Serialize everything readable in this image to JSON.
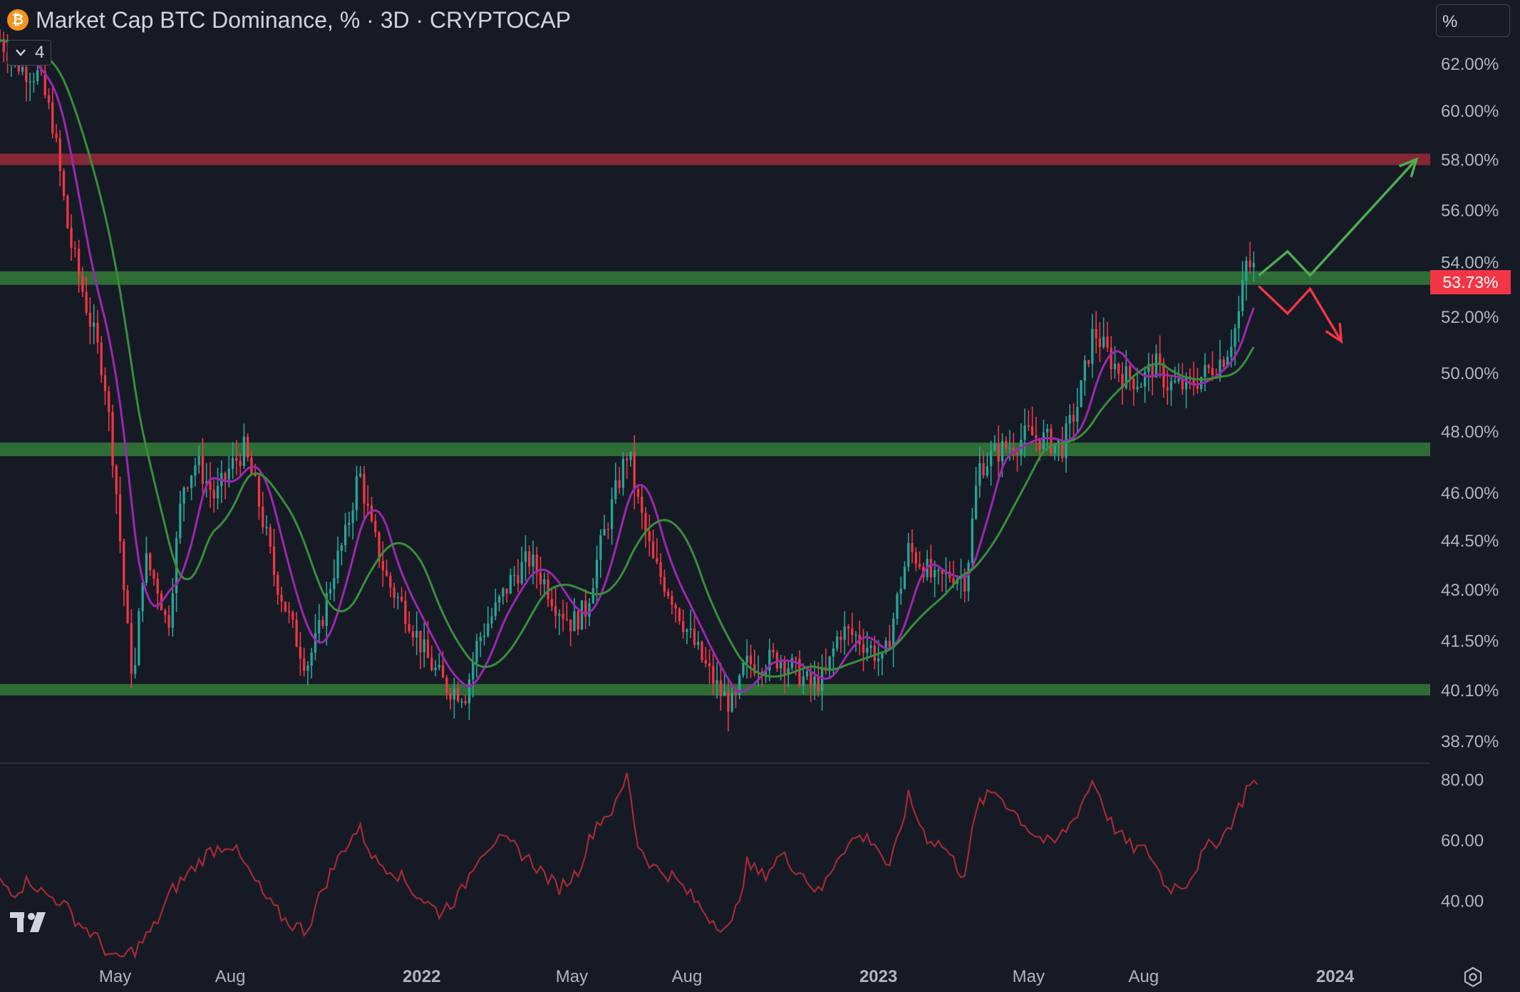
{
  "header": {
    "coin_icon": "bitcoin-icon",
    "coin_glyph": "₿",
    "title": "Market Cap BTC Dominance, % · 3D · CRYPTOCAP",
    "indicator_count": "4",
    "scale_label": "%"
  },
  "current_price": "53.73%",
  "colors": {
    "background": "#161a25",
    "up": "#26a69a",
    "down": "#f23645",
    "ma_fast": "#9c27b0",
    "ma_slow": "#388e3c",
    "resistance": "#f23645",
    "support": "#388e3c",
    "rsi": "#a52a35"
  },
  "chart_data": [
    {
      "type": "candlestick",
      "title": "Market Cap BTC Dominance, % · 3D · CRYPTOCAP",
      "x_tick_labels": [
        "May",
        "Aug",
        "2022",
        "May",
        "Aug",
        "2023",
        "May",
        "Aug",
        "2024"
      ],
      "x_tick_dates": [
        "2021-05-01",
        "2021-08-01",
        "2022-01-01",
        "2022-05-01",
        "2022-08-01",
        "2023-01-01",
        "2023-05-01",
        "2023-08-01",
        "2024-01-01"
      ],
      "y_tick_labels": [
        "62.00%",
        "60.00%",
        "58.00%",
        "56.00%",
        "54.00%",
        "52.00%",
        "50.00%",
        "48.00%",
        "46.00%",
        "44.50%",
        "43.00%",
        "41.50%",
        "40.10%",
        "38.70%"
      ],
      "y_scale": "log",
      "y_range": [
        38.1,
        64.8
      ],
      "x_range": [
        "2021-01-29",
        "2024-03-17"
      ],
      "horizontal_levels": [
        {
          "value": 58.0,
          "kind": "resistance"
        },
        {
          "value": 53.4,
          "kind": "support"
        },
        {
          "value": 47.4,
          "kind": "support"
        },
        {
          "value": 40.1,
          "kind": "support"
        }
      ],
      "price_path": [
        [
          "2021-01-29",
          63.0
        ],
        [
          "2021-02-15",
          61.8
        ],
        [
          "2021-03-01",
          61.5
        ],
        [
          "2021-03-12",
          59.5
        ],
        [
          "2021-03-25",
          55.0
        ],
        [
          "2021-04-10",
          52.0
        ],
        [
          "2021-04-22",
          50.0
        ],
        [
          "2021-05-01",
          46.5
        ],
        [
          "2021-05-10",
          42.0
        ],
        [
          "2021-05-16",
          40.2
        ],
        [
          "2021-05-24",
          44.0
        ],
        [
          "2021-06-05",
          43.0
        ],
        [
          "2021-06-12",
          41.8
        ],
        [
          "2021-06-24",
          46.2
        ],
        [
          "2021-07-05",
          47.0
        ],
        [
          "2021-07-20",
          45.8
        ],
        [
          "2021-08-01",
          46.8
        ],
        [
          "2021-08-12",
          47.4
        ],
        [
          "2021-08-22",
          46.0
        ],
        [
          "2021-09-05",
          43.5
        ],
        [
          "2021-09-20",
          41.8
        ],
        [
          "2021-10-01",
          40.8
        ],
        [
          "2021-10-10",
          41.6
        ],
        [
          "2021-10-22",
          43.5
        ],
        [
          "2021-11-01",
          44.6
        ],
        [
          "2021-11-12",
          46.7
        ],
        [
          "2021-11-22",
          44.8
        ],
        [
          "2021-12-05",
          43.2
        ],
        [
          "2021-12-20",
          42.3
        ],
        [
          "2022-01-05",
          41.0
        ],
        [
          "2022-01-20",
          40.2
        ],
        [
          "2022-02-05",
          40.0
        ],
        [
          "2022-02-15",
          41.5
        ],
        [
          "2022-03-01",
          42.4
        ],
        [
          "2022-03-15",
          43.4
        ],
        [
          "2022-03-28",
          43.9
        ],
        [
          "2022-04-08",
          43.3
        ],
        [
          "2022-04-18",
          42.6
        ],
        [
          "2022-05-01",
          42.0
        ],
        [
          "2022-05-12",
          42.4
        ],
        [
          "2022-05-22",
          44.0
        ],
        [
          "2022-06-05",
          46.0
        ],
        [
          "2022-06-15",
          47.4
        ],
        [
          "2022-06-22",
          45.8
        ],
        [
          "2022-07-05",
          43.8
        ],
        [
          "2022-07-20",
          42.8
        ],
        [
          "2022-08-01",
          41.8
        ],
        [
          "2022-08-15",
          40.8
        ],
        [
          "2022-08-28",
          40.0
        ],
        [
          "2022-09-08",
          39.6
        ],
        [
          "2022-09-16",
          40.8
        ],
        [
          "2022-10-01",
          40.9
        ],
        [
          "2022-10-15",
          41.0
        ],
        [
          "2022-10-28",
          40.6
        ],
        [
          "2022-11-08",
          40.2
        ],
        [
          "2022-11-20",
          40.5
        ],
        [
          "2022-12-01",
          41.8
        ],
        [
          "2022-12-15",
          41.6
        ],
        [
          "2022-12-28",
          41.2
        ],
        [
          "2023-01-05",
          40.8
        ],
        [
          "2023-01-15",
          42.5
        ],
        [
          "2023-01-25",
          44.2
        ],
        [
          "2023-02-05",
          43.8
        ],
        [
          "2023-02-15",
          43.2
        ],
        [
          "2023-03-01",
          43.5
        ],
        [
          "2023-03-12",
          43.3
        ],
        [
          "2023-03-22",
          46.8
        ],
        [
          "2023-04-05",
          47.3
        ],
        [
          "2023-04-20",
          47.6
        ],
        [
          "2023-05-01",
          47.9
        ],
        [
          "2023-05-15",
          47.7
        ],
        [
          "2023-05-28",
          47.5
        ],
        [
          "2023-06-10",
          49.0
        ],
        [
          "2023-06-22",
          51.5
        ],
        [
          "2023-07-05",
          50.5
        ],
        [
          "2023-07-15",
          49.9
        ],
        [
          "2023-07-30",
          49.7
        ],
        [
          "2023-08-10",
          50.3
        ],
        [
          "2023-08-20",
          49.6
        ],
        [
          "2023-09-05",
          49.5
        ],
        [
          "2023-09-20",
          50.0
        ],
        [
          "2023-10-05",
          50.6
        ],
        [
          "2023-10-15",
          51.8
        ],
        [
          "2023-10-22",
          53.9
        ],
        [
          "2023-10-30",
          53.73
        ]
      ],
      "ma_fast_lag_days": 12,
      "ma_slow_lag_days": 28,
      "projections": [
        {
          "direction": "up",
          "points": [
            [
              "2023-11-01",
              53.5
            ],
            [
              "2023-11-24",
              54.4
            ],
            [
              "2023-12-12",
              53.5
            ],
            [
              "2024-03-06",
              58.0
            ]
          ]
        },
        {
          "direction": "down",
          "points": [
            [
              "2023-11-01",
              53.1
            ],
            [
              "2023-11-24",
              52.1
            ],
            [
              "2023-12-12",
              53.0
            ],
            [
              "2024-01-06",
              51.1
            ]
          ]
        }
      ],
      "current_value": 53.73
    },
    {
      "type": "line",
      "panel": "oscillator",
      "y_tick_labels": [
        "80.00",
        "60.00",
        "40.00"
      ],
      "y_range": [
        22,
        85
      ],
      "values": [
        [
          "2021-01-29",
          46
        ],
        [
          "2021-02-10",
          43
        ],
        [
          "2021-02-22",
          47
        ],
        [
          "2021-03-05",
          42
        ],
        [
          "2021-03-18",
          40
        ],
        [
          "2021-04-01",
          33
        ],
        [
          "2021-04-15",
          28
        ],
        [
          "2021-05-01",
          20
        ],
        [
          "2021-05-18",
          24
        ],
        [
          "2021-06-01",
          31
        ],
        [
          "2021-06-15",
          43
        ],
        [
          "2021-07-01",
          50
        ],
        [
          "2021-07-15",
          56
        ],
        [
          "2021-08-01",
          59
        ],
        [
          "2021-08-15",
          50
        ],
        [
          "2021-09-01",
          39
        ],
        [
          "2021-09-15",
          33
        ],
        [
          "2021-10-01",
          30
        ],
        [
          "2021-10-15",
          45
        ],
        [
          "2021-11-01",
          58
        ],
        [
          "2021-11-12",
          64
        ],
        [
          "2021-11-25",
          53
        ],
        [
          "2021-12-10",
          50
        ],
        [
          "2021-12-28",
          42
        ],
        [
          "2022-01-15",
          36
        ],
        [
          "2022-02-01",
          42
        ],
        [
          "2022-02-15",
          55
        ],
        [
          "2022-03-01",
          60
        ],
        [
          "2022-03-15",
          58
        ],
        [
          "2022-04-01",
          52
        ],
        [
          "2022-04-20",
          44
        ],
        [
          "2022-05-05",
          49
        ],
        [
          "2022-05-20",
          65
        ],
        [
          "2022-06-05",
          71
        ],
        [
          "2022-06-15",
          82
        ],
        [
          "2022-06-22",
          59
        ],
        [
          "2022-07-05",
          51
        ],
        [
          "2022-07-20",
          48
        ],
        [
          "2022-08-05",
          41
        ],
        [
          "2022-08-20",
          34
        ],
        [
          "2022-09-05",
          30
        ],
        [
          "2022-09-18",
          52
        ],
        [
          "2022-10-01",
          48
        ],
        [
          "2022-10-15",
          55
        ],
        [
          "2022-11-01",
          49
        ],
        [
          "2022-11-15",
          42
        ],
        [
          "2022-12-01",
          56
        ],
        [
          "2022-12-15",
          61
        ],
        [
          "2022-12-28",
          60
        ],
        [
          "2023-01-10",
          50
        ],
        [
          "2023-01-25",
          74
        ],
        [
          "2023-02-08",
          61
        ],
        [
          "2023-02-22",
          58
        ],
        [
          "2023-03-10",
          48
        ],
        [
          "2023-03-22",
          72
        ],
        [
          "2023-04-05",
          76
        ],
        [
          "2023-04-20",
          69
        ],
        [
          "2023-05-05",
          62
        ],
        [
          "2023-05-20",
          58
        ],
        [
          "2023-06-05",
          66
        ],
        [
          "2023-06-22",
          80
        ],
        [
          "2023-07-05",
          66
        ],
        [
          "2023-07-20",
          58
        ],
        [
          "2023-08-05",
          56
        ],
        [
          "2023-08-20",
          44
        ],
        [
          "2023-09-05",
          46
        ],
        [
          "2023-09-20",
          57
        ],
        [
          "2023-10-05",
          62
        ],
        [
          "2023-10-18",
          72
        ],
        [
          "2023-10-25",
          80
        ],
        [
          "2023-11-02",
          77
        ]
      ]
    }
  ]
}
